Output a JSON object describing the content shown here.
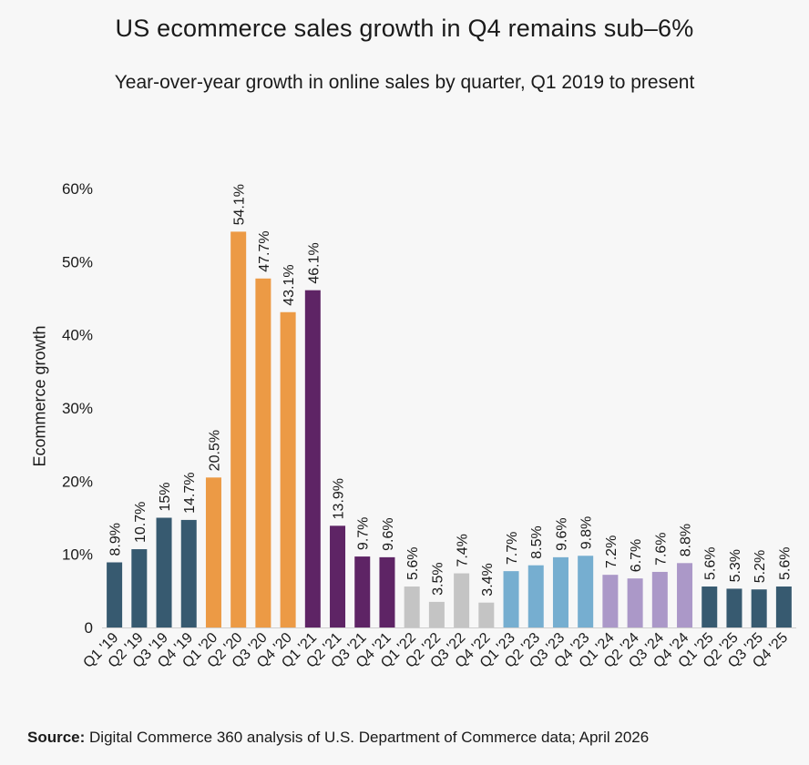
{
  "title": "US ecommerce sales growth in Q4 remains sub–6%",
  "subtitle": "Year-over-year growth in online sales by quarter, Q1 2019 to present",
  "source": {
    "label": "Source:",
    "text": "Digital Commerce 360 analysis of U.S. Department of Commerce data; April 2026"
  },
  "chart_data": {
    "type": "bar",
    "title": "US ecommerce sales growth in Q4 remains sub–6%",
    "subtitle": "Year-over-year growth in online sales by quarter, Q1 2019 to present",
    "xlabel": "",
    "ylabel": "Ecommerce growth",
    "ylim": [
      0,
      60
    ],
    "yticks": [
      0,
      10,
      20,
      30,
      40,
      50,
      60
    ],
    "ytick_labels": [
      "0",
      "10%",
      "20%",
      "30%",
      "40%",
      "50%",
      "60%"
    ],
    "grid": false,
    "legend": "none",
    "categories": [
      "Q1 '19",
      "Q2 '19",
      "Q3 '19",
      "Q4 '19",
      "Q1 '20",
      "Q2 '20",
      "Q3 '20",
      "Q4 '20",
      "Q1 '21",
      "Q2 '21",
      "Q3 '21",
      "Q4 '21",
      "Q1 '22",
      "Q2 '22",
      "Q3 '22",
      "Q4 '22",
      "Q1 '23",
      "Q2 '23",
      "Q3 '23",
      "Q4 '23",
      "Q1 '24",
      "Q2 '24",
      "Q3 '24",
      "Q4 '24",
      "Q1 '25",
      "Q2 '25",
      "Q3 '25",
      "Q4 '25"
    ],
    "values": [
      8.9,
      10.7,
      15,
      14.7,
      20.5,
      54.1,
      47.7,
      43.1,
      46.1,
      13.9,
      9.7,
      9.6,
      5.6,
      3.5,
      7.4,
      3.4,
      7.7,
      8.5,
      9.6,
      9.8,
      7.2,
      6.7,
      7.6,
      8.8,
      5.6,
      5.3,
      5.2,
      5.6
    ],
    "labels": [
      "8.9%",
      "10.7%",
      "15%",
      "14.7%",
      "20.5%",
      "54.1%",
      "47.7%",
      "43.1%",
      "46.1%",
      "13.9%",
      "9.7%",
      "9.6%",
      "5.6%",
      "3.5%",
      "7.4%",
      "3.4%",
      "7.7%",
      "8.5%",
      "9.6%",
      "9.8%",
      "7.2%",
      "6.7%",
      "7.6%",
      "8.8%",
      "5.6%",
      "5.3%",
      "5.2%",
      "5.6%"
    ],
    "year_colors": {
      "2019": "#375a70",
      "2020": "#ec9a45",
      "2021": "#5e2465",
      "2022": "#c4c4c4",
      "2023": "#76aed0",
      "2024": "#ab98c8",
      "2025": "#375a70"
    }
  }
}
